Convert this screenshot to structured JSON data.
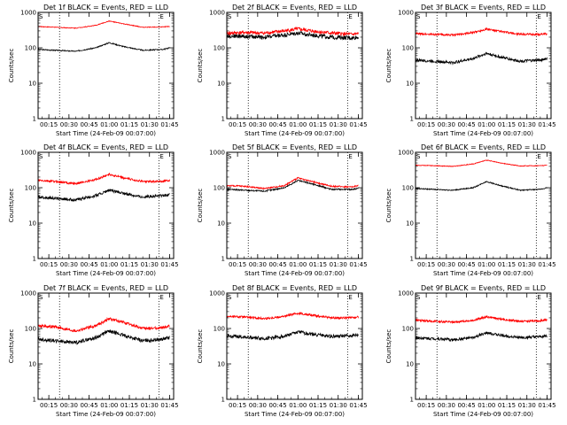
{
  "chart_data": [
    {
      "type": "line",
      "title": "Det 1f BLACK = Events, RED = LLD",
      "xlabel": "Start Time (24-Feb-09 00:07:00)",
      "ylabel": "Counts/sec",
      "yscale": "log",
      "ylim": [
        1,
        1000
      ],
      "x_ticks": [
        "00:15",
        "00:30",
        "00:45",
        "01:00",
        "01:15",
        "01:30",
        "01:45"
      ],
      "y_ticks": [
        "1",
        "10",
        "100",
        "1000"
      ],
      "markers": {
        "dotted_lines": [
          "00:23",
          "01:37"
        ],
        "labels": [
          {
            "text": "S",
            "x": "00:07"
          },
          {
            "text": "E",
            "x": "01:37"
          }
        ]
      },
      "series": [
        {
          "color": "#000000",
          "x": [
            "00:07",
            "00:20",
            "00:35",
            "00:50",
            "01:00",
            "01:10",
            "01:25",
            "01:40",
            "01:45"
          ],
          "values": [
            90,
            85,
            80,
            100,
            140,
            110,
            85,
            90,
            100
          ],
          "noise": 0.015
        },
        {
          "color": "#ff0000",
          "x": [
            "00:07",
            "00:20",
            "00:35",
            "00:50",
            "01:00",
            "01:10",
            "01:25",
            "01:40",
            "01:45"
          ],
          "values": [
            400,
            380,
            360,
            430,
            570,
            480,
            380,
            390,
            400
          ],
          "noise": 0.01
        }
      ]
    },
    {
      "type": "line",
      "title": "Det 2f BLACK = Events, RED = LLD",
      "xlabel": "Start Time (24-Feb-09 00:07:00)",
      "ylabel": "Counts/sec",
      "yscale": "log",
      "ylim": [
        1,
        1000
      ],
      "x_ticks": [
        "00:15",
        "00:30",
        "00:45",
        "01:00",
        "01:15",
        "01:30",
        "01:45"
      ],
      "y_ticks": [
        "1",
        "10",
        "100",
        "1000"
      ],
      "markers": {
        "dotted_lines": [
          "00:23",
          "01:37"
        ],
        "labels": [
          {
            "text": "S",
            "x": "00:07"
          },
          {
            "text": "E",
            "x": "01:37"
          }
        ]
      },
      "series": [
        {
          "color": "#000000",
          "x": [
            "00:07",
            "00:20",
            "00:35",
            "00:50",
            "01:00",
            "01:10",
            "01:25",
            "01:40",
            "01:45"
          ],
          "values": [
            220,
            210,
            200,
            230,
            260,
            230,
            200,
            190,
            200
          ],
          "noise": 0.06
        },
        {
          "color": "#ff0000",
          "x": [
            "00:07",
            "00:20",
            "00:35",
            "00:50",
            "01:00",
            "01:10",
            "01:25",
            "01:40",
            "01:45"
          ],
          "values": [
            260,
            270,
            260,
            300,
            340,
            300,
            260,
            240,
            250
          ],
          "noise": 0.05
        }
      ]
    },
    {
      "type": "line",
      "title": "Det 3f BLACK = Events, RED = LLD",
      "xlabel": "Start Time (24-Feb-09 00:07:00)",
      "ylabel": "Counts/sec",
      "yscale": "log",
      "ylim": [
        1,
        1000
      ],
      "x_ticks": [
        "00:15",
        "00:30",
        "00:45",
        "01:00",
        "01:15",
        "01:30",
        "01:45"
      ],
      "y_ticks": [
        "1",
        "10",
        "100",
        "1000"
      ],
      "markers": {
        "dotted_lines": [
          "00:23",
          "01:37"
        ],
        "labels": [
          {
            "text": "S",
            "x": "00:07"
          },
          {
            "text": "E",
            "x": "01:37"
          }
        ]
      },
      "series": [
        {
          "color": "#000000",
          "x": [
            "00:07",
            "00:20",
            "00:35",
            "00:50",
            "01:00",
            "01:10",
            "01:25",
            "01:40",
            "01:45"
          ],
          "values": [
            45,
            42,
            38,
            50,
            70,
            55,
            42,
            45,
            50
          ],
          "noise": 0.04
        },
        {
          "color": "#ff0000",
          "x": [
            "00:07",
            "00:20",
            "00:35",
            "00:50",
            "01:00",
            "01:10",
            "01:25",
            "01:40",
            "01:45"
          ],
          "values": [
            250,
            240,
            230,
            270,
            340,
            290,
            240,
            240,
            250
          ],
          "noise": 0.03
        }
      ]
    },
    {
      "type": "line",
      "title": "Det 4f BLACK = Events, RED = LLD",
      "xlabel": "Start Time (24-Feb-09 00:07:00)",
      "ylabel": "Counts/sec",
      "yscale": "log",
      "ylim": [
        1,
        1000
      ],
      "x_ticks": [
        "00:15",
        "00:30",
        "00:45",
        "01:00",
        "01:15",
        "01:30",
        "01:45"
      ],
      "y_ticks": [
        "1",
        "10",
        "100",
        "1000"
      ],
      "markers": {
        "dotted_lines": [
          "00:23",
          "01:37"
        ],
        "labels": [
          {
            "text": "S",
            "x": "00:07"
          },
          {
            "text": "E",
            "x": "01:37"
          }
        ]
      },
      "series": [
        {
          "color": "#000000",
          "x": [
            "00:07",
            "00:20",
            "00:35",
            "00:50",
            "01:00",
            "01:10",
            "01:25",
            "01:40",
            "01:45"
          ],
          "values": [
            55,
            50,
            45,
            60,
            85,
            70,
            55,
            60,
            65
          ],
          "noise": 0.04
        },
        {
          "color": "#ff0000",
          "x": [
            "00:07",
            "00:20",
            "00:35",
            "00:50",
            "01:00",
            "01:10",
            "01:25",
            "01:40",
            "01:45"
          ],
          "values": [
            160,
            150,
            130,
            170,
            240,
            190,
            150,
            150,
            160
          ],
          "noise": 0.03
        }
      ]
    },
    {
      "type": "line",
      "title": "Det 5f BLACK = Events, RED = LLD",
      "xlabel": "Start Time (24-Feb-09 00:07:00)",
      "ylabel": "Counts/sec",
      "yscale": "log",
      "ylim": [
        1,
        1000
      ],
      "x_ticks": [
        "00:15",
        "00:30",
        "00:45",
        "01:00",
        "01:15",
        "01:30",
        "01:45"
      ],
      "y_ticks": [
        "1",
        "10",
        "100",
        "1000"
      ],
      "markers": {
        "dotted_lines": [
          "00:23",
          "01:37"
        ],
        "labels": [
          {
            "text": "S",
            "x": "00:07"
          },
          {
            "text": "E",
            "x": "01:37"
          }
        ]
      },
      "series": [
        {
          "color": "#000000",
          "x": [
            "00:07",
            "00:20",
            "00:35",
            "00:50",
            "01:00",
            "01:10",
            "01:25",
            "01:40",
            "01:45"
          ],
          "values": [
            90,
            85,
            80,
            100,
            160,
            130,
            90,
            90,
            95
          ],
          "noise": 0.02
        },
        {
          "color": "#ff0000",
          "x": [
            "00:07",
            "00:20",
            "00:35",
            "00:50",
            "01:00",
            "01:10",
            "01:25",
            "01:40",
            "01:45"
          ],
          "values": [
            115,
            110,
            95,
            115,
            190,
            150,
            110,
            105,
            115
          ],
          "noise": 0.02
        }
      ]
    },
    {
      "type": "line",
      "title": "Det 6f BLACK = Events, RED = LLD",
      "xlabel": "Start Time (24-Feb-09 00:07:00)",
      "ylabel": "Counts/sec",
      "yscale": "log",
      "ylim": [
        1,
        1000
      ],
      "x_ticks": [
        "00:15",
        "00:30",
        "00:45",
        "01:00",
        "01:15",
        "01:30",
        "01:45"
      ],
      "y_ticks": [
        "1",
        "10",
        "100",
        "1000"
      ],
      "markers": {
        "dotted_lines": [
          "00:23",
          "01:37"
        ],
        "labels": [
          {
            "text": "S",
            "x": "00:07"
          },
          {
            "text": "E",
            "x": "01:37"
          }
        ]
      },
      "series": [
        {
          "color": "#000000",
          "x": [
            "00:07",
            "00:20",
            "00:35",
            "00:50",
            "01:00",
            "01:10",
            "01:25",
            "01:40",
            "01:45"
          ],
          "values": [
            95,
            90,
            85,
            100,
            150,
            115,
            85,
            90,
            100
          ],
          "noise": 0.015
        },
        {
          "color": "#ff0000",
          "x": [
            "00:07",
            "00:20",
            "00:35",
            "00:50",
            "01:00",
            "01:10",
            "01:25",
            "01:40",
            "01:45"
          ],
          "values": [
            430,
            420,
            400,
            470,
            600,
            500,
            410,
            420,
            430
          ],
          "noise": 0.01
        }
      ]
    },
    {
      "type": "line",
      "title": "Det 7f BLACK = Events, RED = LLD",
      "xlabel": "Start Time (24-Feb-09 00:07:00)",
      "ylabel": "Counts/sec",
      "yscale": "log",
      "ylim": [
        1,
        1000
      ],
      "x_ticks": [
        "00:15",
        "00:30",
        "00:45",
        "01:00",
        "01:15",
        "01:30",
        "01:45"
      ],
      "y_ticks": [
        "1",
        "10",
        "100",
        "1000"
      ],
      "markers": {
        "dotted_lines": [
          "00:23",
          "01:37"
        ],
        "labels": [
          {
            "text": "S",
            "x": "00:07"
          },
          {
            "text": "E",
            "x": "01:37"
          }
        ]
      },
      "series": [
        {
          "color": "#000000",
          "x": [
            "00:07",
            "00:20",
            "00:35",
            "00:50",
            "01:00",
            "01:10",
            "01:25",
            "01:40",
            "01:45"
          ],
          "values": [
            50,
            45,
            40,
            55,
            85,
            65,
            45,
            50,
            55
          ],
          "noise": 0.05
        },
        {
          "color": "#ff0000",
          "x": [
            "00:07",
            "00:20",
            "00:35",
            "00:50",
            "01:00",
            "01:10",
            "01:25",
            "01:40",
            "01:45"
          ],
          "values": [
            120,
            110,
            85,
            120,
            190,
            150,
            100,
            105,
            120
          ],
          "noise": 0.04
        }
      ]
    },
    {
      "type": "line",
      "title": "Det 8f BLACK = Events, RED = LLD",
      "xlabel": "Start Time (24-Feb-09 00:07:00)",
      "ylabel": "Counts/sec",
      "yscale": "log",
      "ylim": [
        1,
        1000
      ],
      "x_ticks": [
        "00:15",
        "00:30",
        "00:45",
        "01:00",
        "01:15",
        "01:30",
        "01:45"
      ],
      "y_ticks": [
        "1",
        "10",
        "100",
        "1000"
      ],
      "markers": {
        "dotted_lines": [
          "00:23",
          "01:37"
        ],
        "labels": [
          {
            "text": "S",
            "x": "00:07"
          },
          {
            "text": "E",
            "x": "01:37"
          }
        ]
      },
      "series": [
        {
          "color": "#000000",
          "x": [
            "00:07",
            "00:20",
            "00:35",
            "00:50",
            "01:00",
            "01:10",
            "01:25",
            "01:40",
            "01:45"
          ],
          "values": [
            60,
            58,
            52,
            60,
            80,
            70,
            60,
            62,
            65
          ],
          "noise": 0.05
        },
        {
          "color": "#ff0000",
          "x": [
            "00:07",
            "00:20",
            "00:35",
            "00:50",
            "01:00",
            "01:10",
            "01:25",
            "01:40",
            "01:45"
          ],
          "values": [
            220,
            210,
            190,
            220,
            270,
            240,
            200,
            200,
            210
          ],
          "noise": 0.03
        }
      ]
    },
    {
      "type": "line",
      "title": "Det 9f BLACK = Events, RED = LLD",
      "xlabel": "Start Time (24-Feb-09 00:07:00)",
      "ylabel": "Counts/sec",
      "yscale": "log",
      "ylim": [
        1,
        1000
      ],
      "x_ticks": [
        "00:15",
        "00:30",
        "00:45",
        "01:00",
        "01:15",
        "01:30",
        "01:45"
      ],
      "y_ticks": [
        "1",
        "10",
        "100",
        "1000"
      ],
      "markers": {
        "dotted_lines": [
          "00:23",
          "01:37"
        ],
        "labels": [
          {
            "text": "S",
            "x": "00:07"
          },
          {
            "text": "E",
            "x": "01:37"
          }
        ]
      },
      "series": [
        {
          "color": "#000000",
          "x": [
            "00:07",
            "00:20",
            "00:35",
            "00:50",
            "01:00",
            "01:10",
            "01:25",
            "01:40",
            "01:45"
          ],
          "values": [
            55,
            52,
            48,
            55,
            75,
            65,
            55,
            58,
            62
          ],
          "noise": 0.04
        },
        {
          "color": "#ff0000",
          "x": [
            "00:07",
            "00:20",
            "00:35",
            "00:50",
            "01:00",
            "01:10",
            "01:25",
            "01:40",
            "01:45"
          ],
          "values": [
            170,
            160,
            150,
            170,
            215,
            185,
            160,
            165,
            175
          ],
          "noise": 0.03
        }
      ]
    }
  ]
}
